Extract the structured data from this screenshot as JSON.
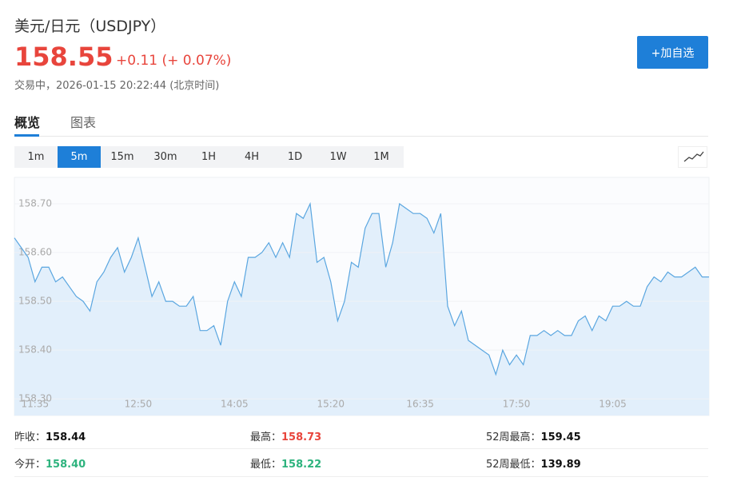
{
  "header": {
    "title": "美元/日元（USDJPY）",
    "price": "158.55",
    "change": "+0.11 (+ 0.07%)",
    "status": "交易中，2026-01-15 20:22:44 (北京时间)",
    "button": "+加自选"
  },
  "tabs": [
    "概览",
    "图表"
  ],
  "intervals": [
    "1m",
    "5m",
    "15m",
    "30m",
    "1H",
    "4H",
    "1D",
    "1W",
    "1M"
  ],
  "chart_data": {
    "type": "area",
    "color": "#5aa6e0",
    "fill": "#e2effb",
    "grid": true,
    "categories": [
      null,
      null,
      null,
      "11:35",
      null,
      null,
      null,
      null,
      null,
      null,
      null,
      null,
      null,
      null,
      null,
      null,
      null,
      null,
      "12:50",
      null,
      null,
      null,
      null,
      null,
      null,
      null,
      null,
      null,
      null,
      null,
      null,
      null,
      "14:05",
      null,
      null,
      null,
      null,
      null,
      null,
      null,
      null,
      null,
      null,
      null,
      null,
      null,
      "15:20",
      null,
      null,
      null,
      null,
      null,
      null,
      null,
      null,
      null,
      null,
      null,
      null,
      "16:35",
      null,
      null,
      null,
      null,
      null,
      null,
      null,
      null,
      null,
      null,
      null,
      null,
      null,
      "17:50",
      null,
      null,
      null,
      null,
      null,
      null,
      null,
      null,
      null,
      null,
      null,
      null,
      null,
      "19:05",
      null,
      null,
      null,
      null,
      null,
      null,
      null,
      null,
      null,
      null,
      null,
      null,
      null,
      null
    ],
    "values": [
      158.63,
      158.61,
      158.59,
      158.54,
      158.57,
      158.57,
      158.54,
      158.55,
      158.53,
      158.51,
      158.5,
      158.48,
      158.54,
      158.56,
      158.59,
      158.61,
      158.56,
      158.59,
      158.63,
      158.57,
      158.51,
      158.54,
      158.5,
      158.5,
      158.49,
      158.49,
      158.51,
      158.44,
      158.44,
      158.45,
      158.41,
      158.5,
      158.54,
      158.51,
      158.59,
      158.59,
      158.6,
      158.62,
      158.59,
      158.62,
      158.59,
      158.68,
      158.67,
      158.7,
      158.58,
      158.59,
      158.54,
      158.46,
      158.5,
      158.58,
      158.57,
      158.65,
      158.68,
      158.68,
      158.57,
      158.62,
      158.7,
      158.69,
      158.68,
      158.68,
      158.67,
      158.64,
      158.68,
      158.49,
      158.45,
      158.48,
      158.42,
      158.41,
      158.4,
      158.39,
      158.35,
      158.4,
      158.37,
      158.39,
      158.37,
      158.43,
      158.43,
      158.44,
      158.43,
      158.44,
      158.43,
      158.43,
      158.46,
      158.47,
      158.44,
      158.47,
      158.46,
      158.49,
      158.49,
      158.5,
      158.49,
      158.49,
      158.53,
      158.55,
      158.54,
      158.56,
      158.55,
      158.55,
      158.56,
      158.57,
      158.55,
      158.55
    ],
    "ylim": [
      158.266,
      158.754
    ],
    "yticks": [
      {
        "value": 158.3,
        "label": "158.30"
      },
      {
        "value": 158.4,
        "label": "158.40"
      },
      {
        "value": 158.5,
        "label": "158.50"
      },
      {
        "value": 158.6,
        "label": "158.60"
      },
      {
        "value": 158.7,
        "label": "158.70"
      }
    ]
  },
  "stats": [
    {
      "label": "昨收：",
      "value": "158.44"
    },
    {
      "label": "最高：",
      "value": "158.73"
    },
    {
      "label": "52周最高：",
      "value": "159.45"
    },
    {
      "label": "今开：",
      "value": "158.40"
    },
    {
      "label": "最低：",
      "value": "158.22"
    },
    {
      "label": "52周最低：",
      "value": "139.89"
    }
  ]
}
